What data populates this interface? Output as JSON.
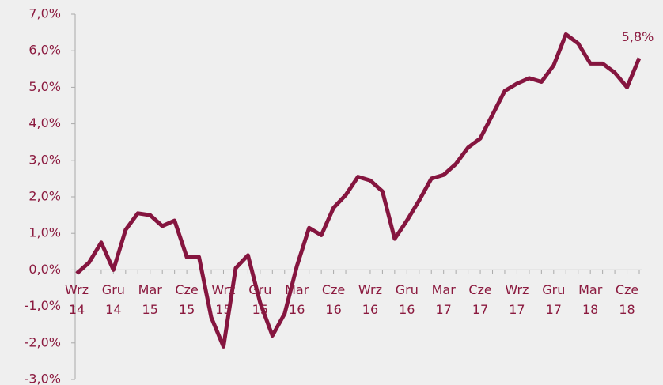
{
  "chart_data": {
    "type": "line",
    "categories": [
      "Wrz 14",
      null,
      null,
      "Gru 14",
      null,
      null,
      "Mar 15",
      null,
      null,
      "Cze 15",
      null,
      null,
      "Wrz 15",
      null,
      null,
      "Gru 15",
      null,
      null,
      "Mar 16",
      null,
      null,
      "Cze 16",
      null,
      null,
      "Wrz 16",
      null,
      null,
      "Gru 16",
      null,
      null,
      "Mar 17",
      null,
      null,
      "Cze 17",
      null,
      null,
      "Wrz 17",
      null,
      null,
      "Gru 17",
      null,
      null,
      "Mar 18",
      null,
      null,
      "Cze 18",
      null
    ],
    "series": [
      {
        "color": "#85153f",
        "values": [
          -0.1,
          0.2,
          0.75,
          0.0,
          1.1,
          1.55,
          1.5,
          1.2,
          1.35,
          0.35,
          0.35,
          -1.3,
          -2.1,
          0.05,
          0.4,
          -0.9,
          -1.8,
          -1.2,
          0.1,
          1.15,
          0.95,
          1.7,
          2.05,
          2.55,
          2.45,
          2.15,
          0.85,
          1.35,
          1.9,
          2.5,
          2.6,
          2.9,
          3.35,
          3.6,
          4.25,
          4.9,
          5.1,
          5.25,
          5.15,
          5.6,
          6.45,
          6.2,
          5.65,
          5.65,
          5.4,
          5.0,
          5.8
        ],
        "value_labels": [
          null,
          null,
          null,
          null,
          null,
          null,
          null,
          null,
          null,
          null,
          null,
          null,
          null,
          null,
          null,
          null,
          null,
          null,
          null,
          null,
          null,
          null,
          null,
          null,
          null,
          null,
          null,
          null,
          null,
          null,
          null,
          null,
          null,
          null,
          null,
          null,
          null,
          null,
          null,
          null,
          null,
          null,
          null,
          null,
          null,
          null,
          "5,8%"
        ]
      }
    ],
    "ylim": [
      -3,
      7
    ],
    "yticks": [
      {
        "value": -3,
        "label": "-3,0%"
      },
      {
        "value": -2,
        "label": "-2,0%"
      },
      {
        "value": -1,
        "label": "-1,0%"
      },
      {
        "value": 0,
        "label": "0,0%"
      },
      {
        "value": 1,
        "label": "1,0%"
      },
      {
        "value": 2,
        "label": "2,0%"
      },
      {
        "value": 3,
        "label": "3,0%"
      },
      {
        "value": 4,
        "label": "4,0%"
      },
      {
        "value": 5,
        "label": "5,0%"
      },
      {
        "value": 6,
        "label": "6,0%"
      },
      {
        "value": 7,
        "label": "7,0%"
      }
    ]
  }
}
